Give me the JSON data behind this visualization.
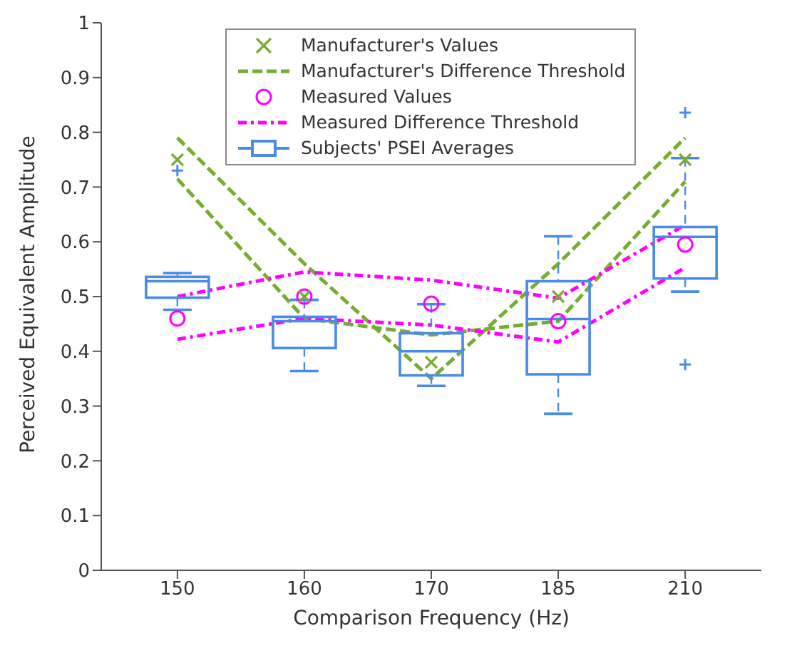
{
  "chart_data": {
    "type": "box",
    "xlabel": "Comparison Frequency (Hz)",
    "ylabel": "Perceived Equivalent Amplitude",
    "categories": [
      "150",
      "160",
      "170",
      "185",
      "210"
    ],
    "ylim": [
      0,
      1
    ],
    "yticks": [
      0,
      0.1,
      0.2,
      0.3,
      0.4,
      0.5,
      0.6,
      0.7,
      0.8,
      0.9,
      1
    ],
    "legend": "top",
    "grid": false,
    "series": [
      {
        "type": "scatter",
        "name": "Manufacturer's Values",
        "color": "#77ac30",
        "marker": "cross",
        "values": [
          0.75,
          0.5,
          0.38,
          0.5,
          0.75
        ]
      },
      {
        "type": "line",
        "name": "Manufacturer's Difference Threshold",
        "color": "#77ac30",
        "line_style": "dashed",
        "values": [
          0.79,
          0.56,
          0.35,
          0.56,
          0.79
        ]
      },
      {
        "type": "line",
        "color": "#77ac30",
        "line_style": "dashed",
        "values": [
          0.715,
          0.46,
          0.43,
          0.455,
          0.71
        ]
      },
      {
        "type": "scatter",
        "name": "Measured Values",
        "color": "#ff00ff",
        "marker": "circle",
        "values": [
          0.46,
          0.5,
          0.487,
          0.455,
          0.595
        ]
      },
      {
        "type": "line",
        "name": "Measured Difference Threshold",
        "color": "#ff00ff",
        "line_style": "dashdot",
        "values": [
          0.5,
          0.545,
          0.53,
          0.497,
          0.631
        ]
      },
      {
        "type": "line",
        "color": "#ff00ff",
        "line_style": "dashdot",
        "values": [
          0.422,
          0.46,
          0.448,
          0.417,
          0.553
        ]
      },
      {
        "name": "Subjects' PSEI Averages",
        "color": "#4a8ae8",
        "boxes": [
          {
            "low": 0.476,
            "q1": 0.498,
            "median": 0.528,
            "q3": 0.536,
            "high": 0.543,
            "outliers": [
              0.73
            ]
          },
          {
            "low": 0.364,
            "q1": 0.406,
            "median": 0.455,
            "q3": 0.463,
            "high": 0.494
          },
          {
            "low": 0.337,
            "q1": 0.356,
            "median": 0.4,
            "q3": 0.433,
            "high": 0.486
          },
          {
            "low": 0.286,
            "q1": 0.358,
            "median": 0.459,
            "q3": 0.528,
            "high": 0.61
          },
          {
            "low": 0.509,
            "q1": 0.533,
            "median": 0.609,
            "q3": 0.627,
            "high": 0.753,
            "outliers": [
              0.836,
              0.376
            ]
          }
        ]
      }
    ]
  }
}
